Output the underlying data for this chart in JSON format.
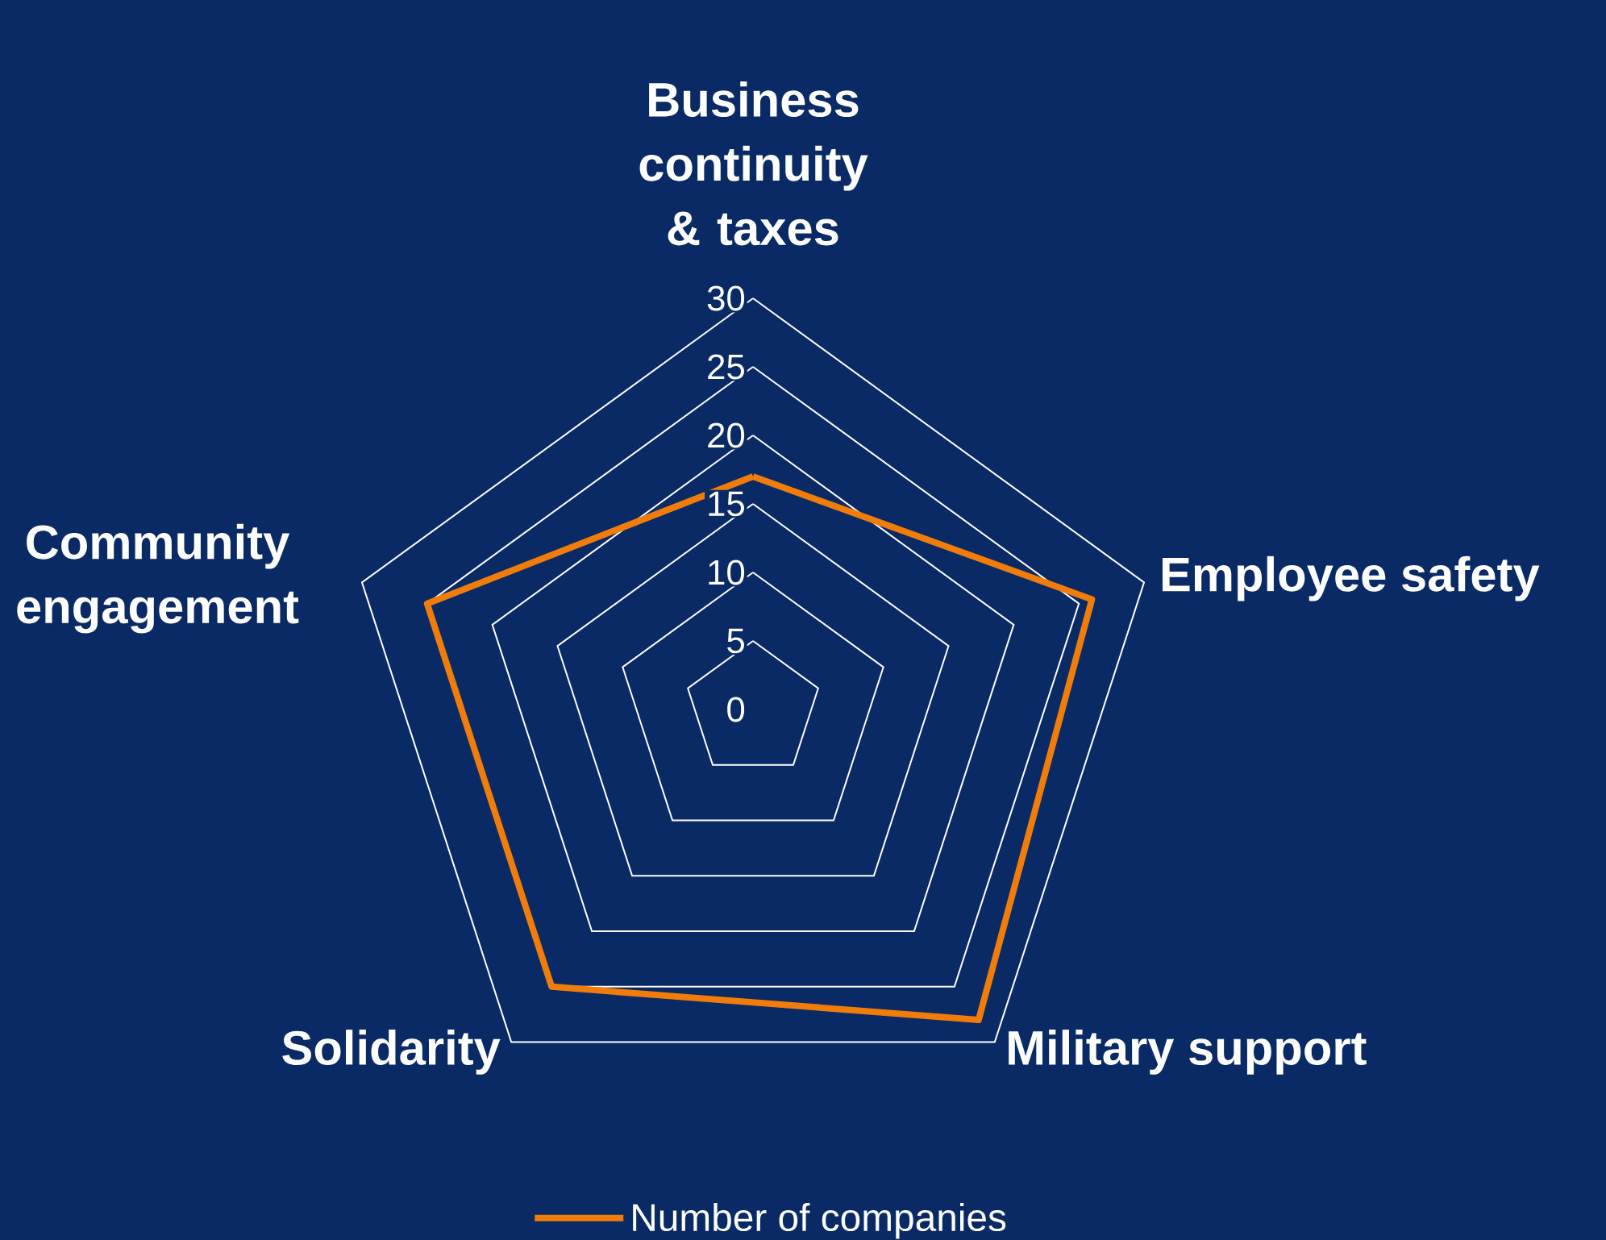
{
  "chart_data": {
    "type": "radar",
    "categories": [
      "Business continuity & taxes",
      "Employee safety",
      "Military support",
      "Solidarity",
      "Community engagement"
    ],
    "series": [
      {
        "name": "Number of companies",
        "color": "#f07c0a",
        "values": [
          17,
          26,
          28,
          25,
          25
        ]
      }
    ],
    "ylim": [
      0,
      30
    ],
    "yticks": [
      0,
      5,
      10,
      15,
      20,
      25,
      30
    ],
    "grid": true,
    "legend": "bottom"
  }
}
